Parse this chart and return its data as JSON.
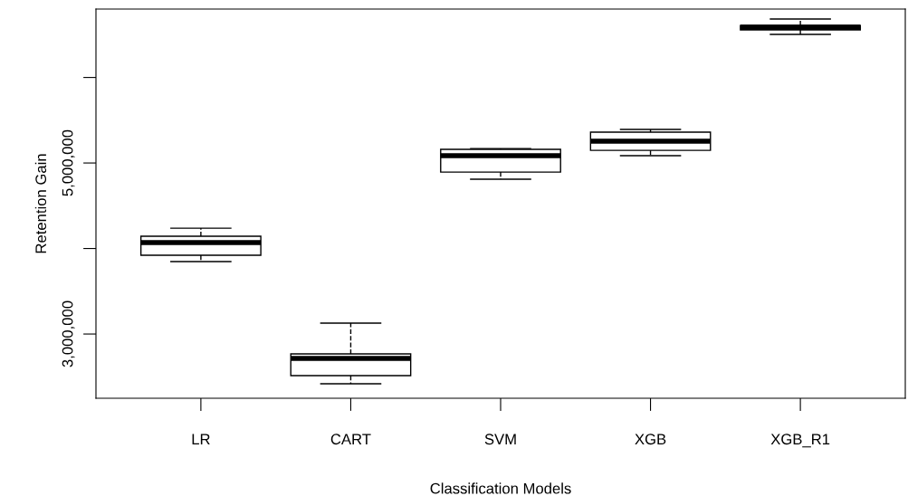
{
  "chart_data": {
    "type": "box",
    "xlabel": "Classification Models",
    "ylabel": "Retention Gain",
    "categories": [
      "LR",
      "CART",
      "SVM",
      "XGB",
      "XGB_R1"
    ],
    "boxes": [
      {
        "low": 3847000,
        "q1": 3921000,
        "median": 4069000,
        "q3": 4143000,
        "high": 4238000
      },
      {
        "low": 2418000,
        "q1": 2513000,
        "median": 2714000,
        "q3": 2767000,
        "high": 3127000
      },
      {
        "low": 4810000,
        "q1": 4894000,
        "median": 5085000,
        "q3": 5159000,
        "high": 5169000
      },
      {
        "low": 5085000,
        "q1": 5148000,
        "median": 5254000,
        "q3": 5360000,
        "high": 5392000
      },
      {
        "low": 6503000,
        "q1": 6556000,
        "median": 6587000,
        "q3": 6608000,
        "high": 6683000
      }
    ],
    "color": "#ffffff",
    "line_style": "dashed",
    "grid": false,
    "legend": false,
    "ylim": [
      2249000,
      6800000
    ],
    "yticks": [
      {
        "value": 3000000,
        "label": "3,000,000"
      },
      {
        "value": 4000000,
        "label": null
      },
      {
        "value": 5000000,
        "label": "5,000,000"
      },
      {
        "value": 6000000,
        "label": null
      }
    ]
  }
}
